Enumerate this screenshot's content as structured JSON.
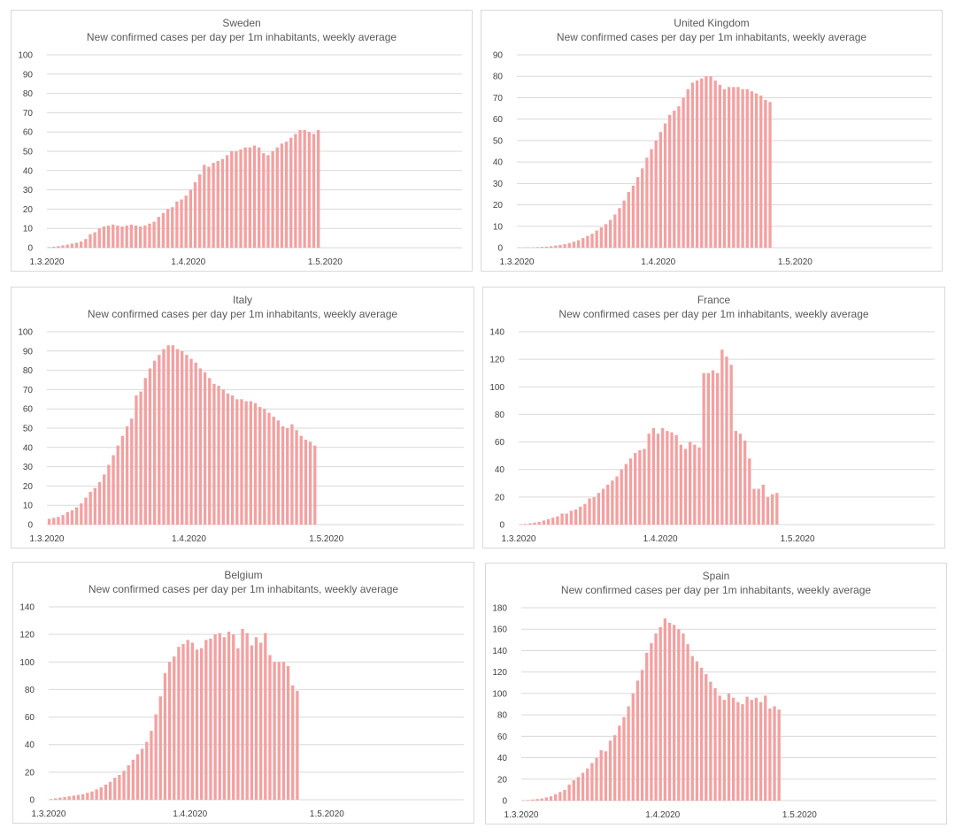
{
  "common": {
    "subtitle": "New confirmed cases per day per 1m inhabitants, weekly average",
    "x_tick_labels": [
      "1.3.2020",
      "1.4.2020",
      "1.5.2020"
    ],
    "bar_color": "#f4a0a0"
  },
  "chart_data": [
    {
      "type": "bar",
      "title": "Sweden",
      "subtitle": "New confirmed cases per day per 1m inhabitants, weekly average",
      "x_start": "2020-03-01",
      "ylim": [
        0,
        100
      ],
      "ytick_step": 10,
      "x_ticks": [
        "1.3.2020",
        "1.4.2020",
        "1.5.2020"
      ],
      "values": [
        0.3,
        0.5,
        0.8,
        1.2,
        1.6,
        2.1,
        2.6,
        3.2,
        4.5,
        7,
        8,
        10,
        11,
        11.5,
        12,
        11.5,
        11,
        11.5,
        12,
        11.5,
        11,
        11.5,
        12.5,
        13.5,
        16,
        18,
        20,
        21,
        24,
        25,
        27,
        30,
        34,
        38,
        43,
        42,
        44,
        45,
        46,
        48,
        50,
        50,
        51,
        52,
        52,
        53,
        52,
        49,
        48,
        50,
        52,
        54,
        55,
        57,
        59,
        61,
        61,
        60,
        59,
        61
      ]
    },
    {
      "type": "bar",
      "title": "United Kingdom",
      "subtitle": "New confirmed cases per day per 1m inhabitants, weekly average",
      "x_start": "2020-03-01",
      "ylim": [
        0,
        90
      ],
      "ytick_step": 10,
      "x_ticks": [
        "1.3.2020",
        "1.4.2020",
        "1.5.2020"
      ],
      "values": [
        0.1,
        0.1,
        0.2,
        0.2,
        0.3,
        0.4,
        0.5,
        0.7,
        1,
        1.3,
        1.7,
        2.2,
        2.8,
        3.5,
        4.5,
        5.5,
        6.5,
        8,
        9.5,
        11,
        13,
        15.5,
        18.5,
        22,
        26,
        29,
        33,
        37,
        42,
        46,
        50,
        54,
        58,
        62,
        64,
        66,
        70,
        74,
        77,
        78,
        79,
        80,
        80,
        78,
        76,
        74,
        75,
        75,
        75,
        74,
        74,
        73,
        72,
        71,
        69,
        68
      ]
    },
    {
      "type": "bar",
      "title": "Italy",
      "subtitle": "New confirmed cases per day per 1m inhabitants, weekly average",
      "x_start": "2020-03-01",
      "ylim": [
        0,
        100
      ],
      "ytick_step": 10,
      "x_ticks": [
        "1.3.2020",
        "1.4.2020",
        "1.5.2020"
      ],
      "values": [
        3,
        3.5,
        4,
        5,
        6.5,
        7.5,
        9,
        11,
        14,
        17,
        19,
        22,
        26,
        31,
        36,
        41,
        46,
        51,
        55,
        67,
        69,
        76,
        81,
        85,
        88,
        91,
        93,
        93,
        91,
        90,
        88,
        86,
        84,
        81,
        79,
        76,
        73,
        72,
        70,
        68,
        67,
        65,
        65,
        64,
        64,
        63,
        61,
        60,
        58,
        56,
        54,
        51,
        50,
        52,
        49,
        46,
        44,
        43,
        41
      ]
    },
    {
      "type": "bar",
      "title": "France",
      "subtitle": "New confirmed cases per day per 1m inhabitants, weekly average",
      "x_start": "2020-03-01",
      "ylim": [
        0,
        140
      ],
      "ytick_step": 20,
      "x_ticks": [
        "1.3.2020",
        "1.4.2020",
        "1.5.2020"
      ],
      "values": [
        0.3,
        0.5,
        1,
        1.5,
        2,
        3,
        4,
        5,
        6,
        8,
        8,
        10,
        11,
        13,
        15,
        19,
        20,
        23,
        26,
        29,
        32,
        35,
        40,
        44,
        48,
        52,
        54,
        55,
        66,
        70,
        66,
        70,
        68,
        67,
        65,
        58,
        55,
        60,
        58,
        56,
        110,
        110,
        112,
        110,
        127,
        122,
        116,
        68,
        66,
        61,
        48,
        26,
        26,
        29,
        20,
        22,
        23
      ]
    },
    {
      "type": "bar",
      "title": "Belgium",
      "subtitle": "New confirmed cases per day per 1m inhabitants, weekly average",
      "x_start": "2020-03-01",
      "ylim": [
        0,
        140
      ],
      "ytick_step": 20,
      "x_ticks": [
        "1.3.2020",
        "1.4.2020",
        "1.5.2020"
      ],
      "values": [
        0.5,
        1,
        1.5,
        2,
        2.5,
        3,
        3.5,
        4,
        5,
        6,
        7.5,
        9,
        11,
        13,
        16,
        18,
        21,
        25,
        29,
        33,
        37,
        42,
        50,
        62,
        75,
        92,
        100,
        104,
        111,
        113,
        116,
        114,
        109,
        110,
        116,
        117,
        120,
        121,
        118,
        122,
        120,
        110,
        124,
        121,
        112,
        118,
        114,
        121,
        105,
        100,
        100,
        100,
        97,
        83,
        79
      ]
    },
    {
      "type": "bar",
      "title": "Spain",
      "subtitle": "New confirmed cases per day per 1m inhabitants, weekly average",
      "x_start": "2020-03-01",
      "ylim": [
        0,
        180
      ],
      "ytick_step": 20,
      "x_ticks": [
        "1.3.2020",
        "1.4.2020",
        "1.5.2020"
      ],
      "values": [
        0.3,
        0.5,
        1,
        1.5,
        2,
        3,
        4,
        6,
        8,
        10,
        15,
        19,
        22,
        26,
        30,
        35,
        40,
        47,
        46,
        56,
        61,
        70,
        78,
        88,
        100,
        112,
        122,
        138,
        147,
        156,
        162,
        170,
        166,
        164,
        160,
        156,
        146,
        135,
        130,
        124,
        118,
        111,
        105,
        98,
        94,
        100,
        96,
        92,
        90,
        97,
        94,
        96,
        92,
        98,
        86,
        88,
        85
      ]
    }
  ]
}
